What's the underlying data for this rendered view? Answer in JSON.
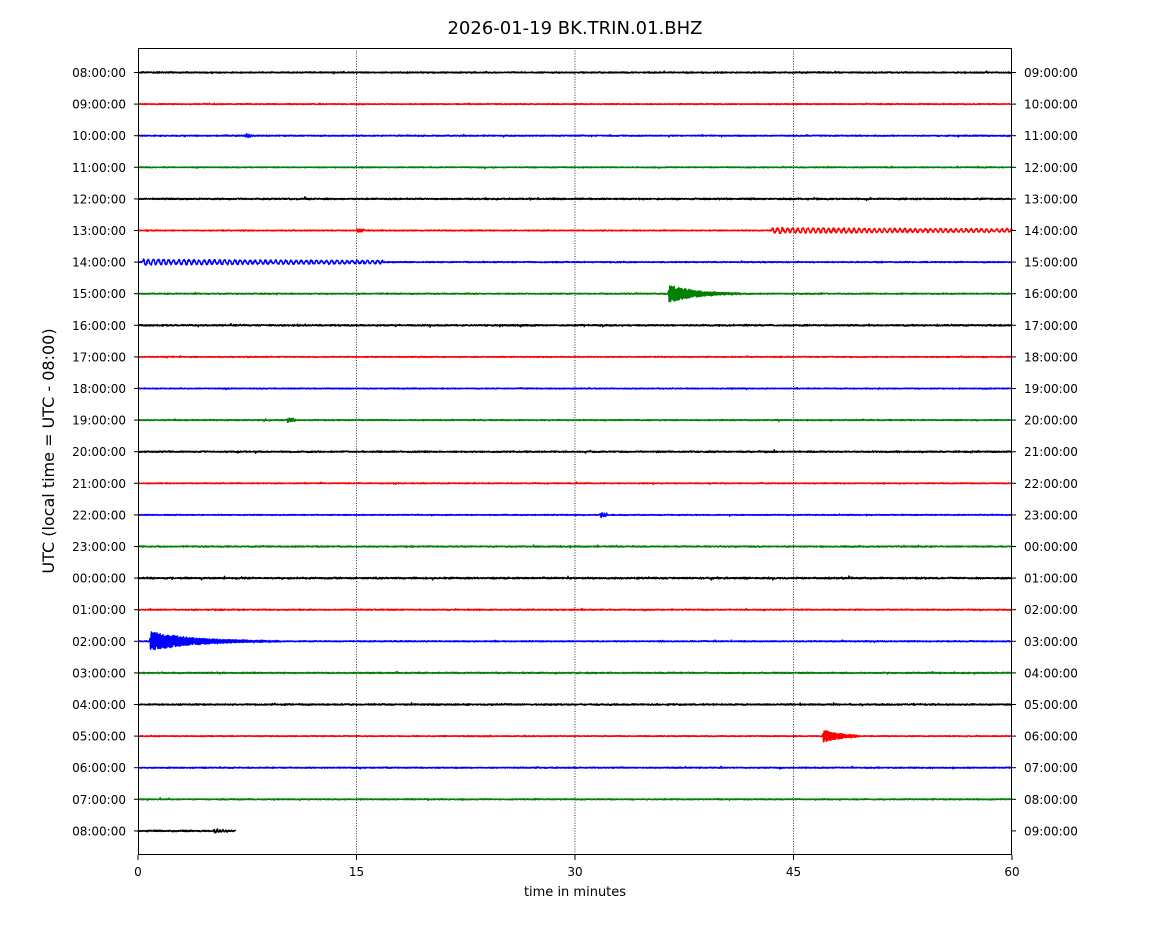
{
  "chart_data": {
    "type": "line",
    "title": "2026-01-19 BK.TRIN.01.BHZ",
    "xlabel": "time in minutes",
    "ylabel": "UTC (local time = UTC - 08:00)",
    "xlim": [
      0,
      60
    ],
    "x_ticks": [
      0,
      15,
      30,
      45,
      60
    ],
    "x_tick_labels": [
      "0",
      "15",
      "30",
      "45",
      "60"
    ],
    "vertical_gridlines_at": [
      15,
      30,
      45
    ],
    "trace_colors_cycle": [
      "#000000",
      "#ff0000",
      "#0000ff",
      "#008000"
    ],
    "left_labels": [
      "08:00:00",
      "09:00:00",
      "10:00:00",
      "11:00:00",
      "12:00:00",
      "13:00:00",
      "14:00:00",
      "15:00:00",
      "16:00:00",
      "17:00:00",
      "18:00:00",
      "19:00:00",
      "20:00:00",
      "21:00:00",
      "22:00:00",
      "23:00:00",
      "00:00:00",
      "01:00:00",
      "02:00:00",
      "03:00:00",
      "04:00:00",
      "05:00:00",
      "06:00:00",
      "07:00:00",
      "08:00:00"
    ],
    "right_labels": [
      "09:00:00",
      "10:00:00",
      "11:00:00",
      "12:00:00",
      "13:00:00",
      "14:00:00",
      "15:00:00",
      "16:00:00",
      "17:00:00",
      "18:00:00",
      "19:00:00",
      "20:00:00",
      "21:00:00",
      "22:00:00",
      "23:00:00",
      "00:00:00",
      "01:00:00",
      "02:00:00",
      "03:00:00",
      "04:00:00",
      "05:00:00",
      "06:00:00",
      "07:00:00",
      "08:00:00",
      "09:00:00"
    ],
    "series": [
      {
        "row": 0,
        "x_end": 60,
        "noise": 0.7,
        "events": []
      },
      {
        "row": 1,
        "x_end": 60,
        "noise": 0.5,
        "events": []
      },
      {
        "row": 2,
        "x_end": 60,
        "noise": 0.6,
        "events": [
          {
            "start": 7.3,
            "dur": 0.6,
            "amp": 1.8,
            "decay": 1.2,
            "period": 0.15
          }
        ]
      },
      {
        "row": 3,
        "x_end": 60,
        "noise": 0.5,
        "events": []
      },
      {
        "row": 4,
        "x_end": 60,
        "noise": 0.8,
        "events": []
      },
      {
        "row": 5,
        "x_end": 60,
        "noise": 0.5,
        "events": [
          {
            "start": 15.0,
            "dur": 0.5,
            "amp": 2.0,
            "decay": 0.8,
            "period": 0.15
          },
          {
            "start": 43.5,
            "dur": 16.5,
            "amp": 2.6,
            "decay": 30,
            "period": 0.35
          }
        ]
      },
      {
        "row": 6,
        "x_end": 60,
        "noise": 0.6,
        "events": [
          {
            "start": 0.3,
            "dur": 16.5,
            "amp": 2.6,
            "decay": 30,
            "period": 0.35
          }
        ]
      },
      {
        "row": 7,
        "x_end": 60,
        "noise": 0.6,
        "events": [
          {
            "start": 36.4,
            "dur": 5.0,
            "amp": 9.0,
            "decay": 1.8,
            "period": 0.1
          }
        ]
      },
      {
        "row": 8,
        "x_end": 60,
        "noise": 0.8,
        "events": []
      },
      {
        "row": 9,
        "x_end": 60,
        "noise": 0.5,
        "events": []
      },
      {
        "row": 10,
        "x_end": 60,
        "noise": 0.5,
        "events": []
      },
      {
        "row": 11,
        "x_end": 60,
        "noise": 0.6,
        "events": [
          {
            "start": 10.2,
            "dur": 0.6,
            "amp": 2.5,
            "decay": 1.0,
            "period": 0.15
          }
        ]
      },
      {
        "row": 12,
        "x_end": 60,
        "noise": 0.8,
        "events": []
      },
      {
        "row": 13,
        "x_end": 60,
        "noise": 0.5,
        "events": []
      },
      {
        "row": 14,
        "x_end": 60,
        "noise": 0.5,
        "events": [
          {
            "start": 31.7,
            "dur": 0.5,
            "amp": 2.5,
            "decay": 0.8,
            "period": 0.15
          }
        ]
      },
      {
        "row": 15,
        "x_end": 60,
        "noise": 0.7,
        "events": []
      },
      {
        "row": 16,
        "x_end": 60,
        "noise": 0.9,
        "events": []
      },
      {
        "row": 17,
        "x_end": 60,
        "noise": 0.6,
        "events": []
      },
      {
        "row": 18,
        "x_end": 60,
        "noise": 0.6,
        "events": [
          {
            "start": 0.8,
            "dur": 9.0,
            "amp": 9.5,
            "decay": 3.0,
            "period": 0.1
          }
        ]
      },
      {
        "row": 19,
        "x_end": 60,
        "noise": 0.7,
        "events": []
      },
      {
        "row": 20,
        "x_end": 60,
        "noise": 0.8,
        "events": []
      },
      {
        "row": 21,
        "x_end": 60,
        "noise": 0.5,
        "events": [
          {
            "start": 47.0,
            "dur": 2.5,
            "amp": 6.5,
            "decay": 1.2,
            "period": 0.1
          }
        ]
      },
      {
        "row": 22,
        "x_end": 60,
        "noise": 0.6,
        "events": []
      },
      {
        "row": 23,
        "x_end": 60,
        "noise": 0.6,
        "events": []
      },
      {
        "row": 24,
        "x_end": 6.7,
        "noise": 0.8,
        "events": [
          {
            "start": 5.2,
            "dur": 1.0,
            "amp": 1.8,
            "decay": 1.0,
            "period": 0.2
          }
        ]
      }
    ]
  }
}
